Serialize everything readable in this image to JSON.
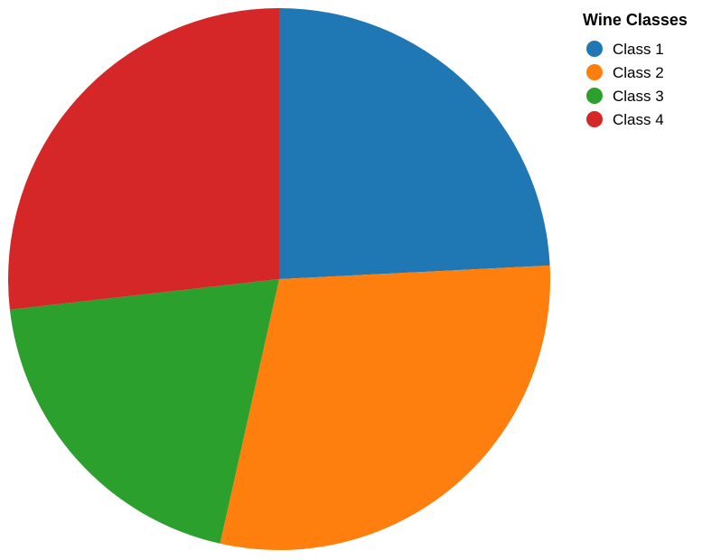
{
  "chart_data": {
    "type": "pie",
    "title": "",
    "legend": {
      "title": "Wine Classes",
      "position": "top-right"
    },
    "start_angle_deg": 0,
    "direction": "clockwise",
    "categories": [
      "Class 1",
      "Class 2",
      "Class 3",
      "Class 4"
    ],
    "values": [
      24.2,
      29.3,
      19.7,
      26.8
    ],
    "colors": [
      "#1f77b4",
      "#ff7f0e",
      "#2ca02c",
      "#d62728"
    ]
  }
}
